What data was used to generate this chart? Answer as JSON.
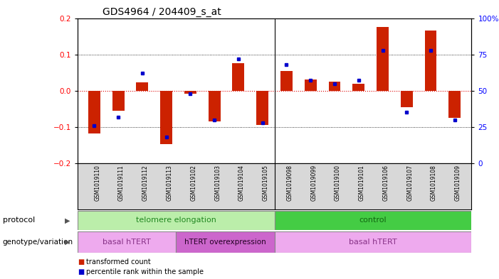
{
  "title": "GDS4964 / 204409_s_at",
  "samples": [
    "GSM1019110",
    "GSM1019111",
    "GSM1019112",
    "GSM1019113",
    "GSM1019102",
    "GSM1019103",
    "GSM1019104",
    "GSM1019105",
    "GSM1019098",
    "GSM1019099",
    "GSM1019100",
    "GSM1019101",
    "GSM1019106",
    "GSM1019107",
    "GSM1019108",
    "GSM1019109"
  ],
  "bar_values": [
    -0.118,
    -0.055,
    0.022,
    -0.148,
    -0.008,
    -0.085,
    0.075,
    -0.095,
    0.055,
    0.03,
    0.025,
    0.02,
    0.175,
    -0.045,
    0.165,
    -0.075
  ],
  "dot_values": [
    26,
    32,
    62,
    18,
    48,
    30,
    72,
    28,
    68,
    57,
    55,
    57,
    78,
    35,
    78,
    30
  ],
  "ylim_left": [
    -0.2,
    0.2
  ],
  "ylim_right": [
    0,
    100
  ],
  "yticks_left": [
    -0.2,
    -0.1,
    0.0,
    0.1,
    0.2
  ],
  "yticks_right": [
    0,
    25,
    50,
    75,
    100
  ],
  "bar_color": "#cc2200",
  "dot_color": "#0000cc",
  "hline_color": "#dd0000",
  "grid_color": "#000000",
  "background_color": "#ffffff",
  "plot_bg": "#ffffff",
  "title_fontsize": 10,
  "separator_col": 8,
  "n_samples": 16,
  "protocol_light_green": "#bbeeaa",
  "protocol_dark_green": "#44cc44",
  "genotype_light_pink": "#eeaaee",
  "genotype_dark_pink": "#cc66cc"
}
